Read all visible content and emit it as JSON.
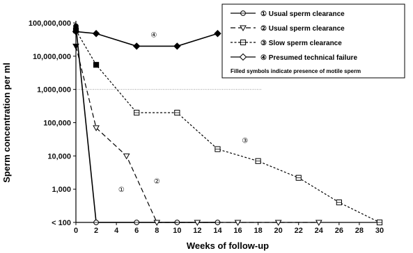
{
  "chart_data": {
    "type": "line",
    "xlabel": "Weeks of follow-up",
    "ylabel": "Sperm concentration per ml",
    "y_scale": "log",
    "ylim": [
      100,
      100000000
    ],
    "xlim": [
      0,
      30
    ],
    "x_ticks": [
      0,
      2,
      4,
      6,
      8,
      10,
      12,
      14,
      16,
      18,
      20,
      22,
      24,
      26,
      28,
      30
    ],
    "y_ticks": [
      {
        "value": 100,
        "label": "< 100"
      },
      {
        "value": 1000,
        "label": "1,000"
      },
      {
        "value": 10000,
        "label": "10,000"
      },
      {
        "value": 100000,
        "label": "100,000"
      },
      {
        "value": 1000000,
        "label": "1,000,000"
      },
      {
        "value": 10000000,
        "label": "10,000,000"
      },
      {
        "value": 100000000,
        "label": "100,000,000"
      }
    ],
    "reference_line": 1000000,
    "legend_position": "top-right",
    "legend_note": "Filled symbols indicate presence of motile sperm",
    "series": [
      {
        "name": "① Usual sperm clearance",
        "marker": "circle",
        "dash": "solid",
        "x": [
          0,
          2,
          6,
          10,
          14
        ],
        "y": [
          80000000,
          100,
          100,
          100,
          100
        ],
        "filled": [
          true,
          false,
          false,
          false,
          false
        ],
        "label": "①",
        "label_at": [
          4.5,
          1000
        ]
      },
      {
        "name": "② Usual sperm clearance",
        "marker": "triangle",
        "dash": "long",
        "x": [
          0,
          2,
          5,
          8,
          12,
          16,
          20,
          24
        ],
        "y": [
          20000000,
          70000,
          10000,
          100,
          100,
          100,
          100,
          100
        ],
        "filled": [
          true,
          false,
          false,
          false,
          false,
          false,
          false,
          false
        ],
        "label": "②",
        "label_at": [
          8,
          1800
        ]
      },
      {
        "name": "③ Slow sperm clearance",
        "marker": "square",
        "dash": "short",
        "x": [
          0,
          2,
          6,
          10,
          14,
          18,
          22,
          26,
          30
        ],
        "y": [
          60000000,
          5500000,
          200000,
          200000,
          16000,
          7000,
          2200,
          400,
          100
        ],
        "filled": [
          true,
          true,
          false,
          false,
          false,
          false,
          false,
          false,
          false
        ],
        "label": "③",
        "label_at": [
          16.7,
          30000
        ]
      },
      {
        "name": "④ Presumed technical failure",
        "marker": "diamond",
        "dash": "solid",
        "x": [
          0,
          2,
          6,
          10,
          14
        ],
        "y": [
          55000000,
          48000000,
          20000000,
          20000000,
          48000000
        ],
        "filled": [
          true,
          true,
          true,
          true,
          true
        ],
        "label": "④",
        "label_at": [
          7.7,
          45000000
        ]
      }
    ]
  }
}
